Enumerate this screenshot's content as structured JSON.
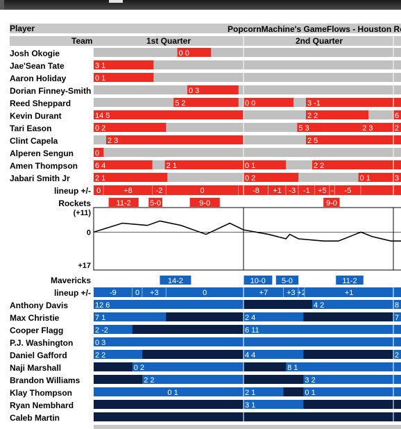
{
  "header": {
    "player_label": "Player",
    "title": "PopcornMachine's GameFlows - Houston Ro",
    "team_label": "Team",
    "quarters": [
      "1st Quarter",
      "2nd Quarter"
    ]
  },
  "colors": {
    "rockets_on": "#ee2b22",
    "mavs_on": "#1565c0",
    "mavs_off": "#0b1f45",
    "bench": "#c0c0c0",
    "flow_line": "#000000"
  },
  "chart_data": {
    "type": "table",
    "teams": [
      {
        "name": "Rockets",
        "players": [
          {
            "name": "Josh Okogie",
            "stints": [
              {
                "start": 6.7,
                "end": 9.4,
                "label": "0 0"
              }
            ]
          },
          {
            "name": "Jae'Sean Tate",
            "stints": [
              {
                "start": 0.0,
                "end": 4.8,
                "label": "3 1"
              }
            ]
          },
          {
            "name": "Aaron Holiday",
            "stints": [
              {
                "start": 0.0,
                "end": 4.8,
                "label": "0 1"
              }
            ]
          },
          {
            "name": "Dorian Finney-Smith",
            "stints": [
              {
                "start": 7.5,
                "end": 11.6,
                "label": "0 3"
              }
            ]
          },
          {
            "name": "Reed Sheppard",
            "stints": [
              {
                "start": 6.4,
                "end": 11.6,
                "label": "5 2"
              },
              {
                "start": 12.0,
                "end": 16.0,
                "label": "0 0"
              },
              {
                "start": 17.0,
                "end": 25.0,
                "label": "3 -1"
              }
            ]
          },
          {
            "name": "Kevin Durant",
            "stints": [
              {
                "start": 0.0,
                "end": 12.0,
                "label": "14 5"
              },
              {
                "start": 17.0,
                "end": 22.0,
                "label": "2 2"
              },
              {
                "start": 24.0,
                "end": 25.0,
                "label": "6"
              }
            ]
          },
          {
            "name": "Tari Eason",
            "stints": [
              {
                "start": 0.0,
                "end": 5.8,
                "label": "0 2"
              },
              {
                "start": 16.3,
                "end": 21.4,
                "label": "5 3"
              },
              {
                "start": 21.4,
                "end": 24.0,
                "label": "2 3"
              },
              {
                "start": 24.0,
                "end": 25.0,
                "label": "2"
              }
            ]
          },
          {
            "name": "Clint Capela",
            "stints": [
              {
                "start": 1.0,
                "end": 12.0,
                "label": "2 3"
              },
              {
                "start": 17.0,
                "end": 25.0,
                "label": "2 5"
              }
            ]
          },
          {
            "name": "Alperen Sengun",
            "stints": [
              {
                "start": 0.0,
                "end": 0.8,
                "label": "0"
              }
            ]
          },
          {
            "name": "Amen Thompson",
            "stints": [
              {
                "start": 0.0,
                "end": 4.7,
                "label": "6 4"
              },
              {
                "start": 5.7,
                "end": 12.0,
                "label": "2 1"
              },
              {
                "start": 12.0,
                "end": 15.4,
                "label": "0 1"
              },
              {
                "start": 17.5,
                "end": 25.0,
                "label": "2 2"
              }
            ]
          },
          {
            "name": "Jabari Smith Jr",
            "stints": [
              {
                "start": 0.0,
                "end": 5.9,
                "label": "2 1"
              },
              {
                "start": 12.0,
                "end": 16.4,
                "label": "0 2"
              },
              {
                "start": 21.2,
                "end": 24.0,
                "label": "0 1"
              },
              {
                "start": 24.0,
                "end": 25.0,
                "label": "3"
              }
            ]
          }
        ]
      },
      {
        "name": "Mavericks",
        "players": [
          {
            "name": "Anthony Davis",
            "stints": [
              {
                "start": 0.0,
                "end": 12.0,
                "label": "12 6"
              },
              {
                "start": 17.5,
                "end": 24.0,
                "label": "4 2"
              },
              {
                "start": 24.0,
                "end": 25.0,
                "label": "8"
              }
            ]
          },
          {
            "name": "Max Christie",
            "stints": [
              {
                "start": 0.0,
                "end": 5.8,
                "label": "7 1"
              },
              {
                "start": 12.0,
                "end": 16.8,
                "label": "2 4"
              },
              {
                "start": 24.0,
                "end": 25.0,
                "label": "7"
              }
            ]
          },
          {
            "name": "Cooper Flagg",
            "stints": [
              {
                "start": 0.0,
                "end": 3.1,
                "label": "2 -2"
              },
              {
                "start": 12.0,
                "end": 25.0,
                "label": "6 11"
              }
            ]
          },
          {
            "name": "P.J. Washington",
            "stints": [
              {
                "start": 0.0,
                "end": 25.0,
                "label": "0 3"
              }
            ]
          },
          {
            "name": "Daniel Gafford",
            "stints": [
              {
                "start": 0.0,
                "end": 3.9,
                "label": "2 2"
              },
              {
                "start": 12.0,
                "end": 16.8,
                "label": "4 4"
              },
              {
                "start": 24.0,
                "end": 25.0,
                "label": "2"
              }
            ]
          },
          {
            "name": "Naji Marshall",
            "stints": [
              {
                "start": 3.1,
                "end": 12.0,
                "label": "0 2"
              },
              {
                "start": 15.4,
                "end": 25.0,
                "label": "8 1"
              }
            ]
          },
          {
            "name": "Brandon Williams",
            "stints": [
              {
                "start": 3.9,
                "end": 12.0,
                "label": "2 2"
              },
              {
                "start": 16.8,
                "end": 25.0,
                "label": "3 2"
              }
            ]
          },
          {
            "name": "Klay Thompson",
            "stints": [
              {
                "start": 0.0,
                "end": 5.8,
                "label": ""
              },
              {
                "start": 5.8,
                "end": 12.0,
                "label": "0 1"
              },
              {
                "start": 12.0,
                "end": 15.2,
                "label": "2 1"
              },
              {
                "start": 16.8,
                "end": 25.0,
                "label": "0 1"
              }
            ]
          },
          {
            "name": "Ryan Nembhard",
            "stints": [
              {
                "start": 12.0,
                "end": 16.8,
                "label": "3 1"
              }
            ]
          },
          {
            "name": "Caleb Martin",
            "stints": []
          }
        ]
      }
    ],
    "lineup_label": "lineup +/-",
    "rockets_lineups": [
      {
        "start": 0.0,
        "end": 0.8,
        "label": "0"
      },
      {
        "start": 0.8,
        "end": 4.7,
        "label": "+8"
      },
      {
        "start": 4.7,
        "end": 5.8,
        "label": "-2"
      },
      {
        "start": 5.8,
        "end": 11.6,
        "label": "0"
      },
      {
        "start": 11.6,
        "end": 12.0,
        "label": ""
      },
      {
        "start": 12.0,
        "end": 14.0,
        "label": "-8"
      },
      {
        "start": 14.0,
        "end": 15.4,
        "label": "+1"
      },
      {
        "start": 15.4,
        "end": 16.4,
        "label": "-3"
      },
      {
        "start": 16.4,
        "end": 17.7,
        "label": "-1"
      },
      {
        "start": 17.7,
        "end": 18.9,
        "label": "+5"
      },
      {
        "start": 18.9,
        "end": 19.3,
        "label": "-"
      },
      {
        "start": 19.3,
        "end": 21.4,
        "label": "-5"
      },
      {
        "start": 21.4,
        "end": 25.0,
        "label": ""
      }
    ],
    "rockets_runs": [
      {
        "start": 1.2,
        "end": 3.6,
        "label": "11-2"
      },
      {
        "start": 4.4,
        "end": 5.5,
        "label": "5-0"
      },
      {
        "start": 7.7,
        "end": 10.1,
        "label": "9-0"
      },
      {
        "start": 18.4,
        "end": 19.7,
        "label": "9-0"
      }
    ],
    "mavs_runs": [
      {
        "start": 5.3,
        "end": 7.8,
        "label": "14-2"
      },
      {
        "start": 12.0,
        "end": 14.3,
        "label": "10-0"
      },
      {
        "start": 14.6,
        "end": 16.4,
        "label": "5-0"
      },
      {
        "start": 19.4,
        "end": 21.6,
        "label": "11-2"
      }
    ],
    "mavs_lineups": [
      {
        "start": 0.0,
        "end": 3.1,
        "label": "-9"
      },
      {
        "start": 3.1,
        "end": 3.9,
        "label": "0"
      },
      {
        "start": 3.9,
        "end": 5.8,
        "label": "+3"
      },
      {
        "start": 5.8,
        "end": 12.0,
        "label": "0"
      },
      {
        "start": 12.0,
        "end": 15.2,
        "label": "+7"
      },
      {
        "start": 15.2,
        "end": 16.4,
        "label": "+3"
      },
      {
        "start": 16.4,
        "end": 16.9,
        "label": "+2"
      },
      {
        "start": 16.9,
        "end": 24.0,
        "label": "+1"
      },
      {
        "start": 24.0,
        "end": 25.0,
        "label": ""
      }
    ],
    "flow": {
      "x": [
        0.0,
        2.3,
        4.3,
        5.3,
        7.0,
        9.0,
        10.9,
        12.0,
        14.0,
        15.4,
        15.7,
        16.4,
        18.4,
        19.6,
        21.4,
        22.3,
        23.8,
        25.0
      ],
      "y": [
        0,
        4,
        3,
        5,
        3,
        -1,
        4,
        1,
        -1,
        -3,
        -1,
        -3,
        -4,
        -4,
        0,
        -2,
        -4,
        -4
      ],
      "top_label": "(+11)",
      "zero_label": "0",
      "bottom_label": "+17",
      "ylim": [
        -17,
        11
      ]
    },
    "xlim": [
      0,
      25
    ],
    "quarter_lines": [
      12,
      24
    ]
  }
}
